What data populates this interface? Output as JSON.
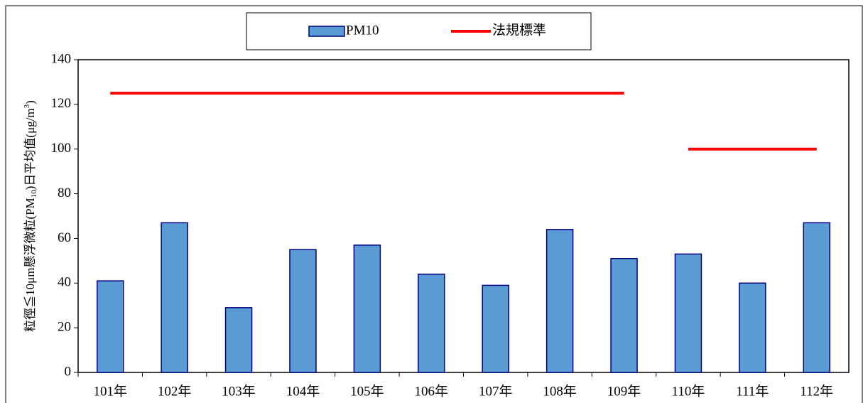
{
  "chart_data": {
    "type": "bar",
    "categories": [
      "101年",
      "102年",
      "103年",
      "104年",
      "105年",
      "106年",
      "107年",
      "108年",
      "109年",
      "110年",
      "111年",
      "112年"
    ],
    "series": [
      {
        "name": "PM10",
        "type": "bar",
        "color": "#5b9bd5",
        "values": [
          41,
          67,
          29,
          55,
          57,
          44,
          39,
          64,
          51,
          53,
          40,
          67
        ]
      },
      {
        "name": "法規標準",
        "type": "line",
        "color": "#ff0000",
        "values": [
          125,
          125,
          125,
          125,
          125,
          125,
          125,
          125,
          125,
          100,
          100,
          100
        ]
      }
    ],
    "ylabel": [
      "粒徑≦10μm懸浮微粒(PM",
      "10",
      ")日平均值(μg/m",
      "3",
      ")"
    ],
    "ylim": [
      0,
      140
    ],
    "yticks": [
      0,
      20,
      40,
      60,
      80,
      100,
      120,
      140
    ],
    "grid": false,
    "legend": "top"
  }
}
